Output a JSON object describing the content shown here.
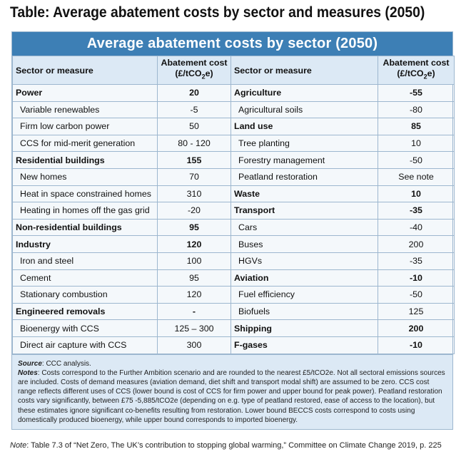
{
  "page_heading": "Table: Average abatement costs by sector and measures (2050)",
  "banner_title": "Average abatement costs by sector (2050)",
  "columns": {
    "sector": "Sector or measure",
    "cost_line1": "Abatement cost",
    "cost_line2_prefix": "(£/tCO",
    "cost_line2_sub": "2",
    "cost_line2_suffix": "e)"
  },
  "left_rows": [
    {
      "label": "Power",
      "value": "20",
      "bold": true
    },
    {
      "label": "Variable renewables",
      "value": "-5",
      "bold": false
    },
    {
      "label": "Firm low carbon power",
      "value": "50",
      "bold": false
    },
    {
      "label": "CCS for mid-merit generation",
      "value": "80 - 120",
      "bold": false
    },
    {
      "label": "Residential buildings",
      "value": "155",
      "bold": true
    },
    {
      "label": "New homes",
      "value": "70",
      "bold": false
    },
    {
      "label": "Heat in space constrained homes",
      "value": "310",
      "bold": false
    },
    {
      "label": "Heating in homes off the gas grid",
      "value": "-20",
      "bold": false
    },
    {
      "label": "Non-residential buildings",
      "value": "95",
      "bold": true
    },
    {
      "label": "Industry",
      "value": "120",
      "bold": true
    },
    {
      "label": "Iron and steel",
      "value": "100",
      "bold": false
    },
    {
      "label": "Cement",
      "value": "95",
      "bold": false
    },
    {
      "label": "Stationary combustion",
      "value": "120",
      "bold": false
    },
    {
      "label": "Engineered removals",
      "value": "-",
      "bold": true
    },
    {
      "label": "Bioenergy with CCS",
      "value": "125 – 300",
      "bold": false
    },
    {
      "label": "Direct air capture with CCS",
      "value": "300",
      "bold": false
    }
  ],
  "right_rows": [
    {
      "label": "Agriculture",
      "value": "-55",
      "bold": true
    },
    {
      "label": "Agricultural soils",
      "value": "-80",
      "bold": false
    },
    {
      "label": "Land use",
      "value": "85",
      "bold": true
    },
    {
      "label": "Tree planting",
      "value": "10",
      "bold": false
    },
    {
      "label": "Forestry management",
      "value": "-50",
      "bold": false
    },
    {
      "label": "Peatland restoration",
      "value": "See note",
      "bold": false
    },
    {
      "label": "Waste",
      "value": "10",
      "bold": true
    },
    {
      "label": "Transport",
      "value": "-35",
      "bold": true
    },
    {
      "label": "Cars",
      "value": "-40",
      "bold": false
    },
    {
      "label": "Buses",
      "value": "200",
      "bold": false
    },
    {
      "label": "HGVs",
      "value": "-35",
      "bold": false
    },
    {
      "label": "Aviation",
      "value": "-10",
      "bold": true
    },
    {
      "label": "Fuel efficiency",
      "value": "-50",
      "bold": false
    },
    {
      "label": "Biofuels",
      "value": "125",
      "bold": false
    },
    {
      "label": "Shipping",
      "value": "200",
      "bold": true
    },
    {
      "label": "F-gases",
      "value": "-10",
      "bold": true
    }
  ],
  "notes": {
    "source_label": "Source",
    "source_text": ": CCC analysis.",
    "notes_label": "Notes",
    "notes_text": ": Costs correspond to the Further Ambition scenario and are rounded to the nearest £5/tCO2e. Not all sectoral emissions sources are included. Costs of demand measures (aviation demand, diet shift and transport modal shift) are assumed to be zero. CCS cost range reflects different uses of CCS (lower bound is cost of CCS for firm power and upper bound for peak power). Peatland restoration costs vary significantly, between £75 -5,885/tCO2e (depending on e.g. type of peatland restored, ease of access to the location), but these estimates ignore significant co-benefits resulting from restoration. Lower bound BECCS costs correspond to costs using domestically produced bioenergy, while upper bound corresponds to imported bioenergy."
  },
  "footer": {
    "label": "Note",
    "text": ": Table 7.3 of “Net Zero, The UK’s contribution to stopping global warming,” Committee on Climate Change 2019, p. 225"
  },
  "colors": {
    "banner": "#3d7fb5",
    "header_fill": "#dce9f5",
    "border": "#9db7cf"
  }
}
